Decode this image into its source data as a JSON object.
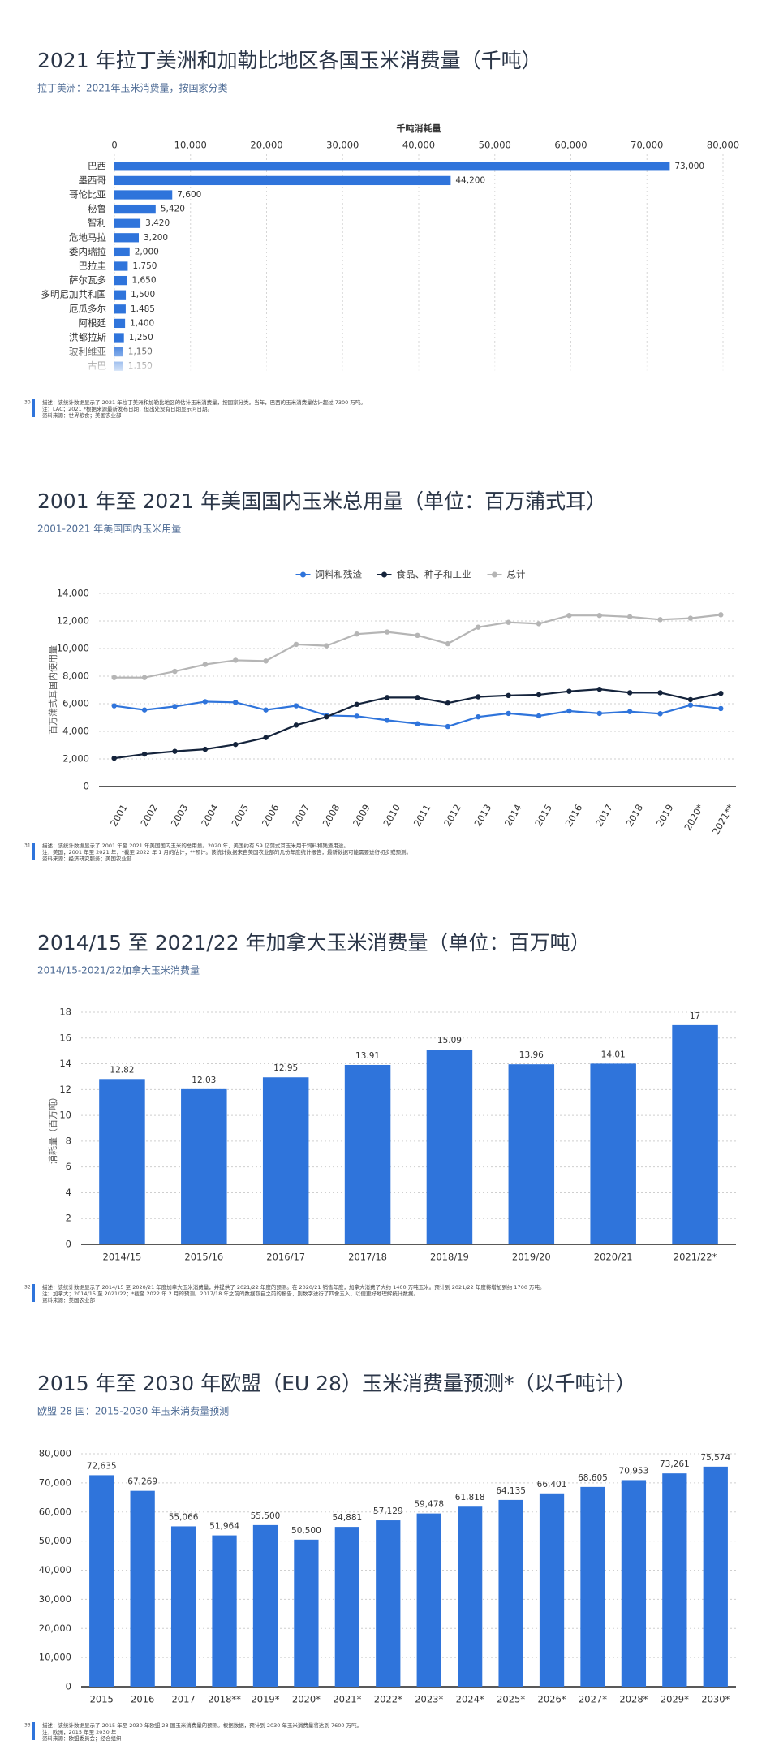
{
  "chart_data": [
    {
      "type": "bar",
      "orientation": "horizontal",
      "title": "2021 年拉丁美洲和加勒比地区各国玉米消费量（千吨）",
      "subtitle": "拉丁美洲：2021年玉米消费量，按国家分类",
      "xlabel": "千吨消耗量",
      "categories": [
        "巴西",
        "墨西哥",
        "哥伦比亚",
        "秘鲁",
        "智利",
        "危地马拉",
        "委内瑞拉",
        "巴拉圭",
        "萨尔瓦多",
        "多明尼加共和国",
        "厄瓜多尔",
        "阿根廷",
        "洪都拉斯",
        "玻利维亚",
        "古巴"
      ],
      "values": [
        73000,
        44200,
        7600,
        5420,
        3420,
        3200,
        2000,
        1750,
        1650,
        1500,
        1485,
        1400,
        1250,
        1150,
        1150
      ],
      "value_labels": [
        "73,000",
        "44,200",
        "7,600",
        "5,420",
        "3,420",
        "3,200",
        "2,000",
        "1,750",
        "1,650",
        "1,500",
        "1,485",
        "1,400",
        "1,250",
        "1,150",
        "1,150"
      ],
      "color": "#2f74db",
      "xlim": [
        0,
        80000
      ],
      "xticks": [
        0,
        {
          "value": 10000,
          "label": "10,000"
        },
        {
          "value": 20000,
          "label": "20,000"
        },
        {
          "value": 30000,
          "label": "30,000"
        },
        {
          "value": 40000,
          "label": "40,000"
        },
        {
          "value": 50000,
          "label": "50,000"
        },
        {
          "value": 60000,
          "label": "60,000"
        },
        {
          "value": 70000,
          "label": "70,000"
        },
        {
          "value": 80000,
          "label": "80,000"
        }
      ],
      "grid": true,
      "page_number": "30",
      "notes": [
        "描述：该统计数据显示了 2021 年拉丁美洲和加勒比地区的估计玉米消费量，按国家分类。当年，巴西的玉米消费量估计超过 7300 万吨。",
        "注：LAC；2021 *根据来源最新发布日期，但出处没有日期显示问日期。",
        "资料来源：世界粮食；美国农业部"
      ]
    },
    {
      "type": "line",
      "title": "2001 年至 2021 年美国国内玉米总用量（单位：百万蒲式耳）",
      "subtitle": "2001-2021 年美国国内玉米用量",
      "ylabel": "百万蒲式耳国内使用量",
      "legend": "top",
      "categories": [
        "2001",
        "2002",
        "2003",
        "2004",
        "2005",
        "2006",
        "2007",
        "2008",
        "2009",
        "2010",
        "2011",
        "2012",
        "2013",
        "2014",
        "2015",
        "2016",
        "2017",
        "2018",
        "2019",
        "2020*",
        "2021**"
      ],
      "series": [
        {
          "name": "饲料和残渣",
          "color": "#2f74db",
          "values": [
            5850,
            5550,
            5800,
            6150,
            6100,
            5550,
            5850,
            5150,
            5100,
            4800,
            4550,
            4350,
            5050,
            5300,
            5120,
            5470,
            5300,
            5430,
            5280,
            5900,
            5650
          ]
        },
        {
          "name": "食品、种子和工业",
          "color": "#14233b",
          "values": [
            2050,
            2350,
            2550,
            2700,
            3050,
            3550,
            4450,
            5050,
            5950,
            6450,
            6450,
            6050,
            6500,
            6600,
            6650,
            6900,
            7050,
            6800,
            6800,
            6300,
            6750
          ]
        },
        {
          "name": "总计",
          "color": "#b5b5b5",
          "values": [
            7900,
            7900,
            8350,
            8850,
            9150,
            9100,
            10300,
            10200,
            11050,
            11200,
            10950,
            10350,
            11550,
            11900,
            11800,
            12400,
            12400,
            12300,
            12100,
            12200,
            12450
          ]
        }
      ],
      "ylim": [
        0,
        14000
      ],
      "yticks": [
        0,
        {
          "value": 2000,
          "label": "2,000"
        },
        {
          "value": 4000,
          "label": "4,000"
        },
        {
          "value": 6000,
          "label": "6,000"
        },
        {
          "value": 8000,
          "label": "8,000"
        },
        {
          "value": 10000,
          "label": "10,000"
        },
        {
          "value": 12000,
          "label": "12,000"
        },
        {
          "value": 14000,
          "label": "14,000"
        }
      ],
      "grid": true,
      "page_number": "31",
      "notes": [
        "描述：该统计数据显示了 2001 年至 2021 年美国国内玉米的总用量。2020 年，美国约有 59 亿蒲式耳玉米用于饲料和残渣用途。",
        "注：美国；2001 年至 2021 年；*截至 2022 年 1 月的估计；**预计。该统计数据来自美国农业部的几份年度统计报告，最新数据可能需要进行初步或预测。",
        "资料来源：经济研究服务；美国农业部"
      ]
    },
    {
      "type": "bar",
      "title": "2014/15 至 2021/22 年加拿大玉米消费量（单位：百万吨）",
      "subtitle": "2014/15-2021/22加拿大玉米消费量",
      "ylabel": "消耗量（百万吨）",
      "categories": [
        "2014/15",
        "2015/16",
        "2016/17",
        "2017/18",
        "2018/19",
        "2019/20",
        "2020/21",
        "2021/22*"
      ],
      "values": [
        12.82,
        12.03,
        12.95,
        13.91,
        15.09,
        13.96,
        14.01,
        17
      ],
      "color": "#2f74db",
      "ylim": [
        0,
        18
      ],
      "yticks": [
        0,
        2,
        4,
        6,
        8,
        10,
        12,
        14,
        16,
        18
      ],
      "grid": true,
      "page_number": "32",
      "notes": [
        "描述：该统计数据显示了 2014/15 至 2020/21 年度加拿大玉米消费量，并提供了 2021/22 年度的预测。在 2020/21 销售年度，加拿大消费了大约 1400 万吨玉米。预计到 2021/22 年度将增加到约 1700 万吨。",
        "注：加拿大；2014/15 至 2021/22；*截至 2022 年 2 月的预测。2017/18 年之前的数据取自之前的报告，则数字进行了四舍五入，以便更好地理解统计数据。",
        "资料来源：美国农业部"
      ]
    },
    {
      "type": "bar",
      "title": "2015 年至 2030 年欧盟（EU 28）玉米消费量预测*（以千吨计）",
      "subtitle": "欧盟 28 国：2015-2030 年玉米消费量预测",
      "categories": [
        "2015",
        "2016",
        "2017",
        "2018**",
        "2019*",
        "2020*",
        "2021*",
        "2022*",
        "2023*",
        "2024*",
        "2025*",
        "2026*",
        "2027*",
        "2028*",
        "2029*",
        "2030*"
      ],
      "values": [
        72635,
        67269,
        55066,
        51964,
        55500,
        50500,
        54881,
        57129,
        59478,
        61818,
        64135,
        66401,
        68605,
        70953,
        73261,
        75574
      ],
      "value_labels": [
        "72,635",
        "67,269",
        "55,066",
        "51,964",
        "55,500",
        "50,500",
        "54,881",
        "57,129",
        "59,478",
        "61,818",
        "64,135",
        "66,401",
        "68,605",
        "70,953",
        "73,261",
        "75,574"
      ],
      "color": "#2f74db",
      "ylim": [
        0,
        80000
      ],
      "yticks": [
        0,
        {
          "value": 10000,
          "label": "10,000"
        },
        {
          "value": 20000,
          "label": "20,000"
        },
        {
          "value": 30000,
          "label": "30,000"
        },
        {
          "value": 40000,
          "label": "40,000"
        },
        {
          "value": 50000,
          "label": "50,000"
        },
        {
          "value": 60000,
          "label": "60,000"
        },
        {
          "value": 70000,
          "label": "70,000"
        },
        {
          "value": 80000,
          "label": "80,000"
        }
      ],
      "grid": true,
      "page_number": "33",
      "notes": [
        "描述：该统计数据显示了 2015 年至 2030 年欧盟 28 国玉米消费量的预测。根据数据，预计到 2030 年玉米消费量将达到 7600 万吨。",
        "注：欧洲；2015 年至 2030 年",
        "资料来源：欧盟委员会；经合组织"
      ]
    }
  ]
}
